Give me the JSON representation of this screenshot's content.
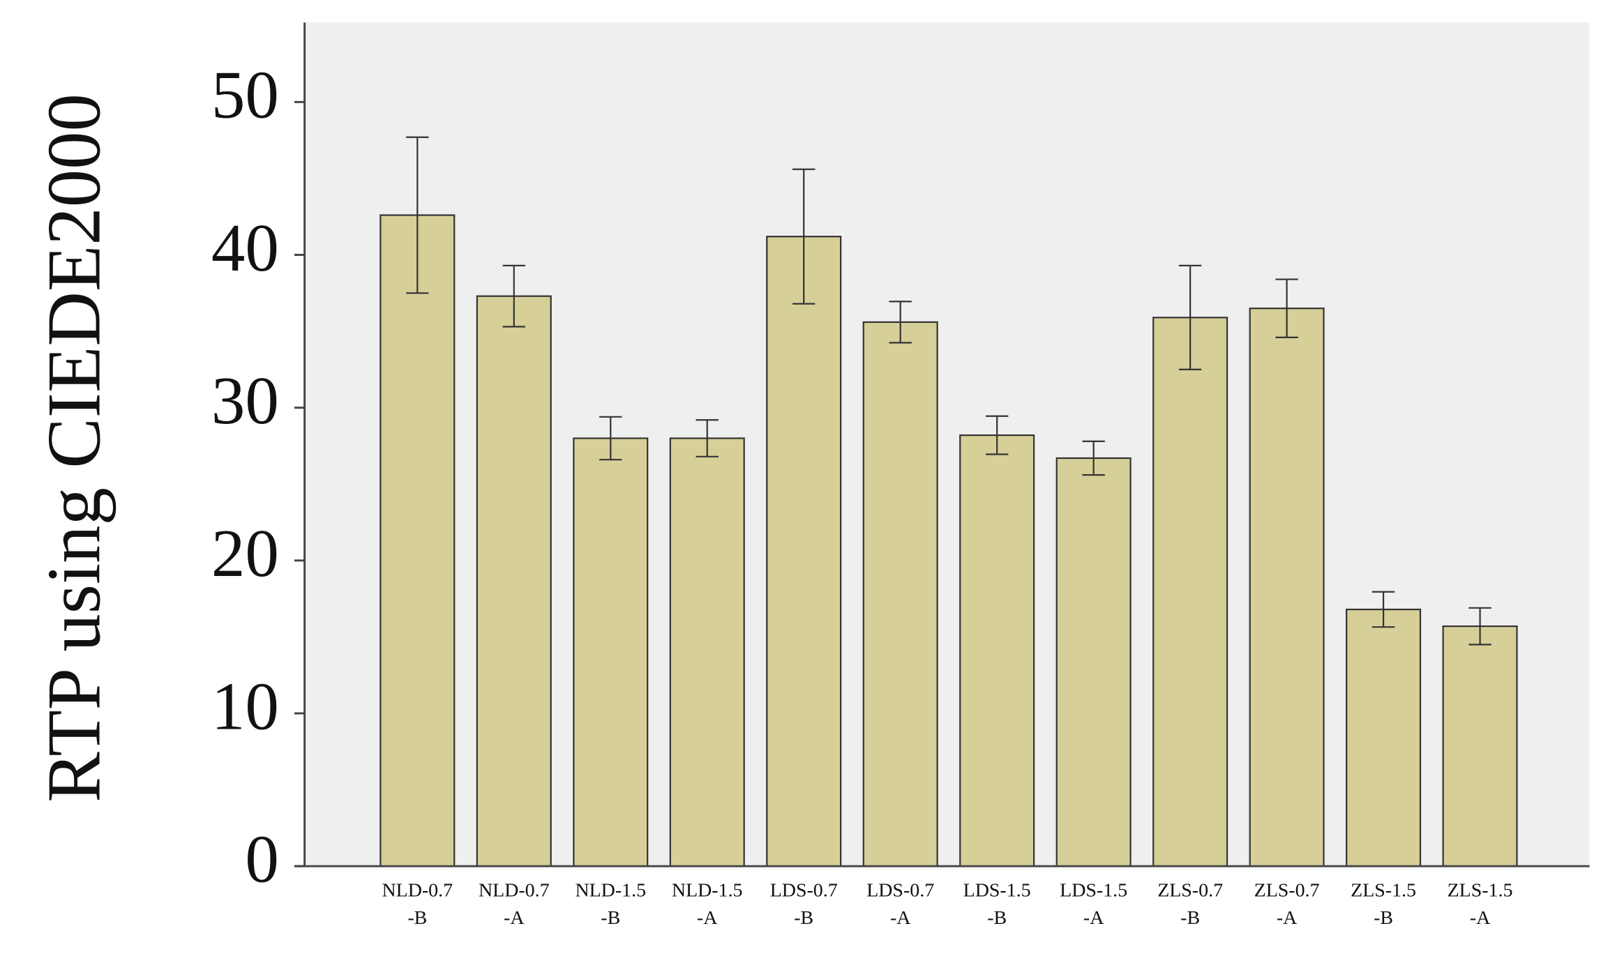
{
  "chart_data": {
    "type": "bar",
    "y_label": "RTP using CIEDE2000",
    "categories": [
      [
        "NLD-0.7",
        "-B"
      ],
      [
        "NLD-0.7",
        "-A"
      ],
      [
        "NLD-1.5",
        "-B"
      ],
      [
        "NLD-1.5",
        "-A"
      ],
      [
        "LDS-0.7",
        "-B"
      ],
      [
        "LDS-0.7",
        "-A"
      ],
      [
        "LDS-1.5",
        "-B"
      ],
      [
        "LDS-1.5",
        "-A"
      ],
      [
        "ZLS-0.7",
        "-B"
      ],
      [
        "ZLS-0.7",
        "-A"
      ],
      [
        "ZLS-1.5",
        "-B"
      ],
      [
        "ZLS-1.5",
        "-A"
      ]
    ],
    "values": [
      42.6,
      37.3,
      28.0,
      28.0,
      41.2,
      35.6,
      28.2,
      26.7,
      35.9,
      36.5,
      16.8,
      15.7
    ],
    "errors": [
      5.1,
      2.0,
      1.4,
      1.2,
      4.4,
      1.35,
      1.25,
      1.1,
      3.4,
      1.9,
      1.15,
      1.2
    ],
    "color": "#d6cf98",
    "ylim": [
      0,
      55.2
    ],
    "yticks": [
      0,
      10,
      20,
      30,
      40,
      50
    ]
  }
}
